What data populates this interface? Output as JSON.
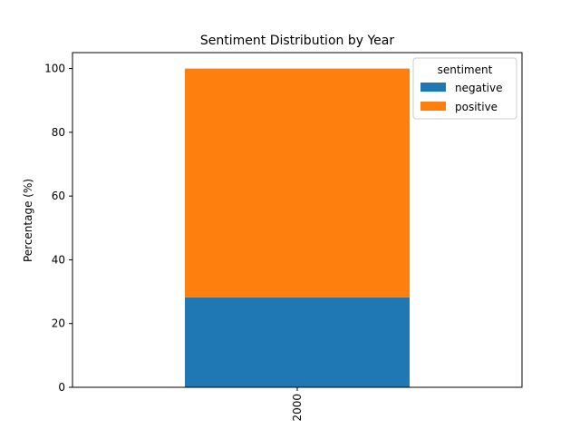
{
  "chart_data": {
    "type": "bar",
    "stacked": true,
    "title": "Sentiment Distribution by Year",
    "xlabel": "",
    "ylabel": "Percentage (%)",
    "categories": [
      "2000"
    ],
    "series": [
      {
        "name": "negative",
        "values": [
          28.2
        ],
        "color": "#1f77b4"
      },
      {
        "name": "positive",
        "values": [
          71.8
        ],
        "color": "#ff7f0e"
      }
    ],
    "ylim": [
      0,
      105
    ],
    "yticks": [
      0,
      20,
      40,
      60,
      80,
      100
    ],
    "x_tick_rotation": "vertical",
    "grid": false,
    "legend": {
      "title": "sentiment",
      "placement": "top-right"
    }
  }
}
